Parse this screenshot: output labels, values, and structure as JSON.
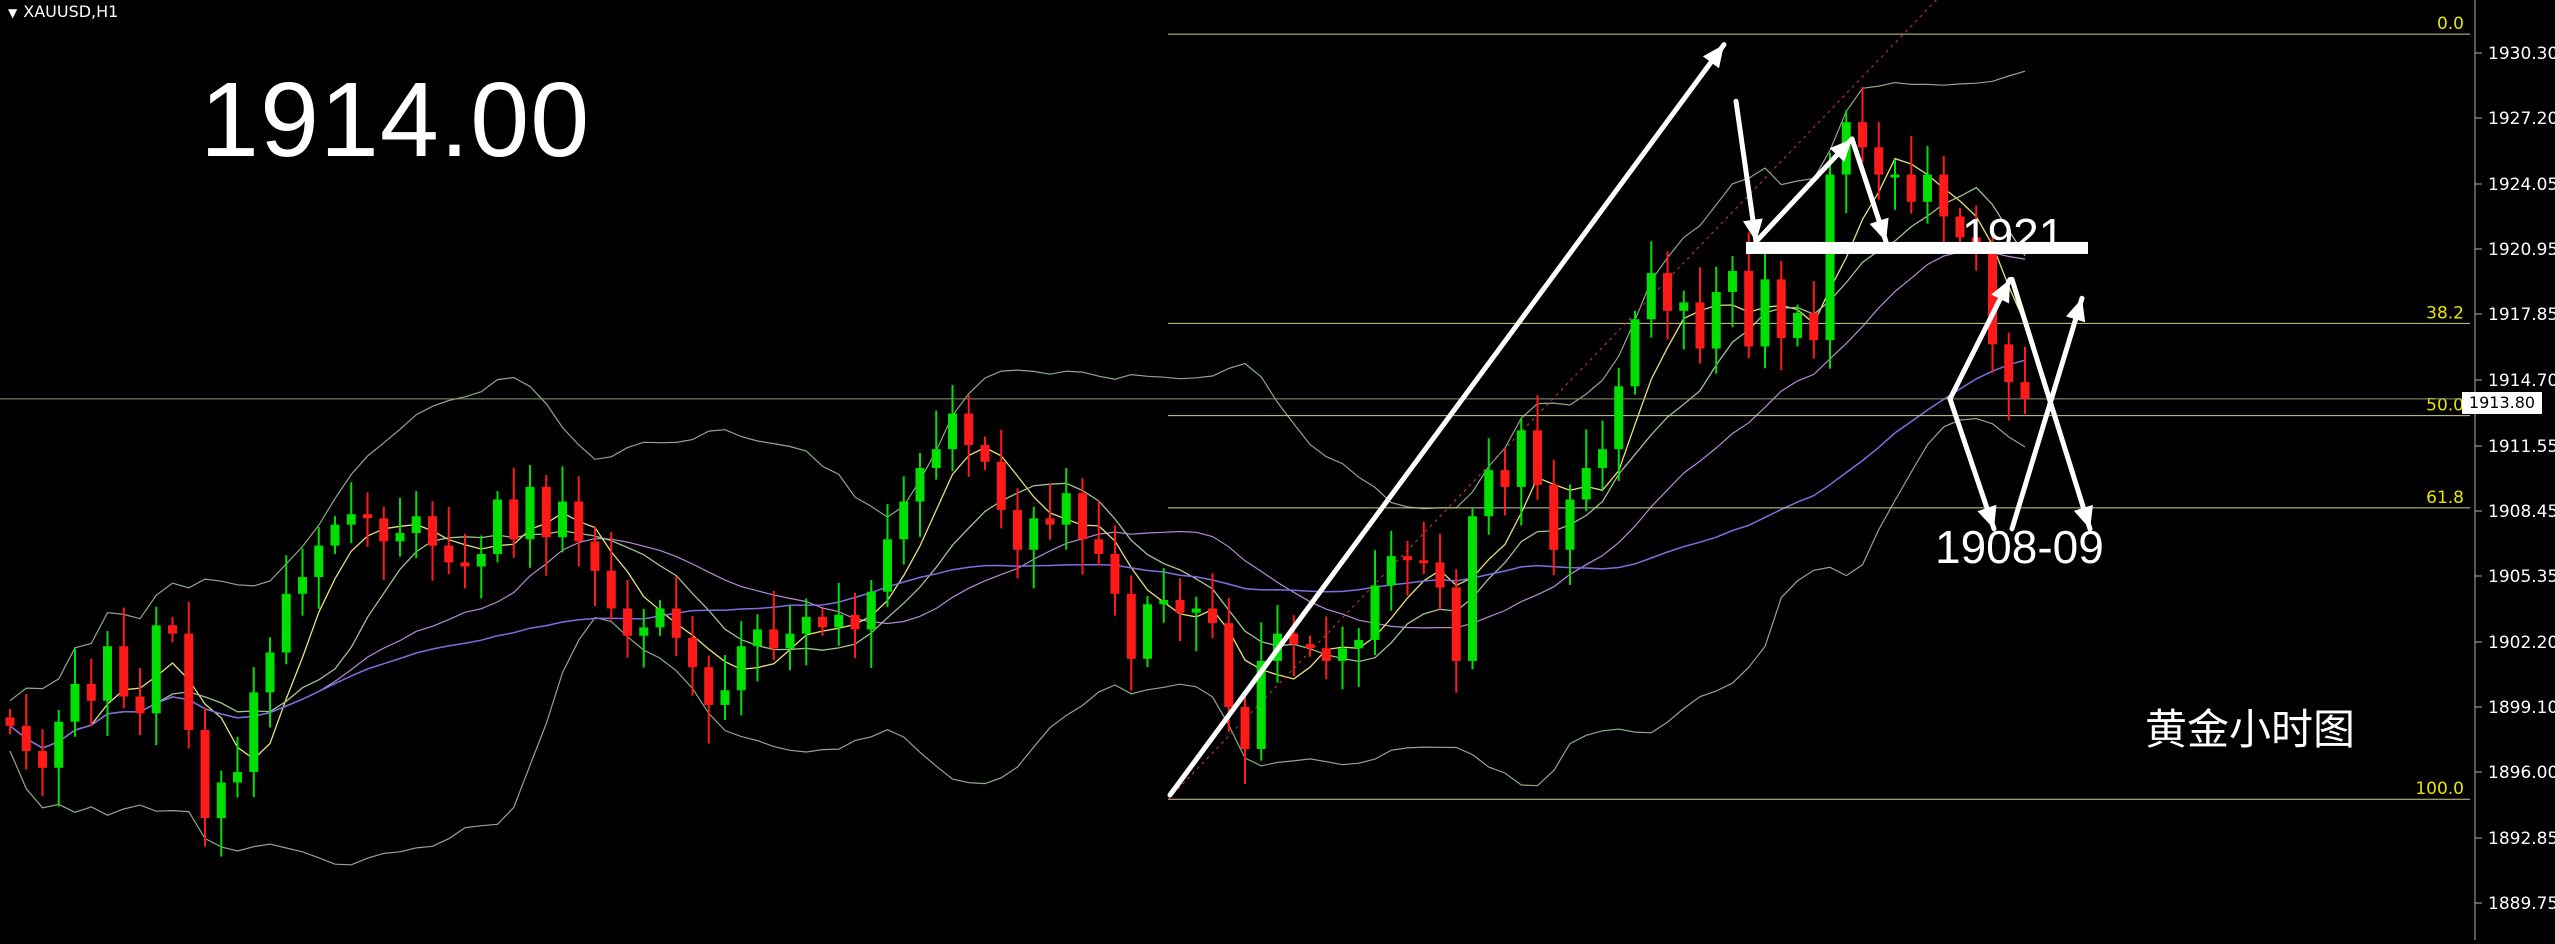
{
  "symbol": "XAUUSD,H1",
  "big_price": "1914.00",
  "annotations": {
    "resistance": "1921",
    "support": "1908-09",
    "caption": "黄金小时图"
  },
  "current_price": "1913.80",
  "colors": {
    "background": "#000000",
    "bull_candle": "#00e000",
    "bear_candle": "#ff1a1a",
    "fib_line": "#c8d28c",
    "fib_label": "#e6e600",
    "arrows": "#ffffff"
  },
  "chart_data": {
    "type": "candlestick",
    "title": "XAUUSD,H1",
    "y_ticks": [
      1930.3,
      1927.2,
      1924.05,
      1920.95,
      1917.85,
      1914.7,
      1911.55,
      1908.45,
      1905.35,
      1902.2,
      1899.1,
      1896.0,
      1892.85,
      1889.75
    ],
    "y_tick_labels": [
      "1930.30",
      "1927.20",
      "1924.05",
      "1920.95",
      "1917.85",
      "1914.70",
      "1911.55",
      "1908.45",
      "1905.35",
      "1902.20",
      "1899.10",
      "1896.00",
      "1892.85",
      "1889.75"
    ],
    "ylim": [
      1888.5,
      1933.5
    ],
    "fibonacci": [
      {
        "label": "0.0",
        "price": 1931.2
      },
      {
        "label": "38.2",
        "price": 1917.4
      },
      {
        "label": "50.0",
        "price": 1913.0
      },
      {
        "label": "61.8",
        "price": 1908.6
      },
      {
        "label": "100.0",
        "price": 1894.7
      }
    ],
    "resistance_level": 1921,
    "support_level": "1908-09",
    "close_sequence": [
      1898.2,
      1897.0,
      1896.2,
      1898.4,
      1900.2,
      1899.4,
      1902.0,
      1899.6,
      1898.8,
      1903.0,
      1902.6,
      1898.0,
      1893.8,
      1895.5,
      1896.0,
      1899.8,
      1901.7,
      1904.5,
      1905.3,
      1906.8,
      1907.8,
      1908.3,
      1908.1,
      1907.0,
      1907.4,
      1908.2,
      1906.8,
      1906.0,
      1905.8,
      1906.4,
      1909.0,
      1907.1,
      1909.6,
      1907.2,
      1908.9,
      1907.0,
      1905.6,
      1903.8,
      1902.5,
      1902.9,
      1903.8,
      1902.4,
      1901.0,
      1899.2,
      1899.9,
      1902.0,
      1902.8,
      1901.9,
      1902.6,
      1903.4,
      1902.9,
      1903.5,
      1902.8,
      1904.6,
      1907.1,
      1908.9,
      1910.5,
      1911.4,
      1913.1,
      1911.6,
      1910.8,
      1908.5,
      1906.6,
      1908.1,
      1907.8,
      1909.3,
      1907.1,
      1906.4,
      1904.5,
      1901.4,
      1904.0,
      1904.2,
      1903.6,
      1903.8,
      1903.1,
      1899.1,
      1897.1,
      1901.3,
      1902.6,
      1902.1,
      1901.9,
      1901.3,
      1901.9,
      1902.3,
      1904.9,
      1906.3,
      1906.1,
      1906.0,
      1904.8,
      1901.3,
      1908.2,
      1910.4,
      1909.6,
      1912.3,
      1909.7,
      1906.6,
      1909.0,
      1910.5,
      1911.4,
      1914.4,
      1917.6,
      1919.8,
      1918.0,
      1918.4,
      1916.2,
      1918.9,
      1919.9,
      1916.3,
      1919.5,
      1916.7,
      1917.9,
      1916.6,
      1924.5,
      1927.0,
      1925.8,
      1924.5,
      1924.5,
      1923.2,
      1924.5,
      1922.5,
      1921.5,
      1920.8,
      1916.4,
      1914.6,
      1913.8
    ]
  }
}
